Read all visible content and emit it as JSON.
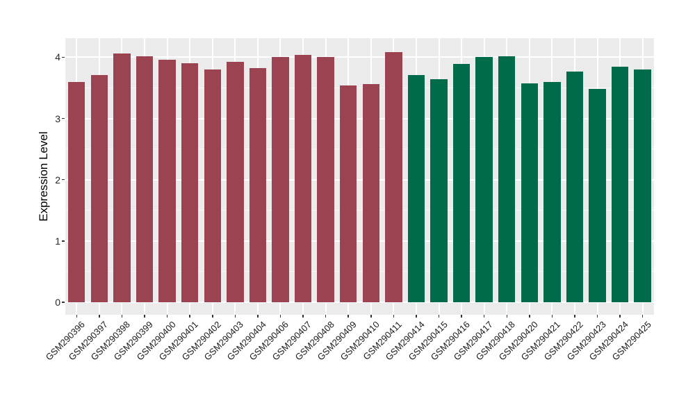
{
  "chart_data": {
    "type": "bar",
    "title": "",
    "xlabel": "",
    "ylabel": "Expression Level",
    "categories": [
      "GSM290396",
      "GSM290397",
      "GSM290398",
      "GSM290399",
      "GSM290400",
      "GSM290401",
      "GSM290402",
      "GSM290403",
      "GSM290404",
      "GSM290406",
      "GSM290407",
      "GSM290408",
      "GSM290409",
      "GSM290410",
      "GSM290411",
      "GSM290414",
      "GSM290415",
      "GSM290416",
      "GSM290417",
      "GSM290418",
      "GSM290420",
      "GSM290421",
      "GSM290422",
      "GSM290423",
      "GSM290424",
      "GSM290425"
    ],
    "values": [
      3.6,
      3.71,
      4.06,
      4.02,
      3.96,
      3.9,
      3.8,
      3.92,
      3.82,
      4.0,
      4.04,
      4.0,
      3.54,
      3.56,
      4.08,
      3.71,
      3.64,
      3.89,
      4.0,
      4.01,
      3.57,
      3.6,
      3.77,
      3.48,
      3.84,
      3.8
    ],
    "colors": [
      "#9C4352",
      "#9C4352",
      "#9C4352",
      "#9C4352",
      "#9C4352",
      "#9C4352",
      "#9C4352",
      "#9C4352",
      "#9C4352",
      "#9C4352",
      "#9C4352",
      "#9C4352",
      "#9C4352",
      "#9C4352",
      "#9C4352",
      "#006B4B",
      "#006B4B",
      "#006B4B",
      "#006B4B",
      "#006B4B",
      "#006B4B",
      "#006B4B",
      "#006B4B",
      "#006B4B",
      "#006B4B",
      "#006B4B"
    ],
    "group_colors": {
      "left_group": "#9C4352",
      "right_group": "#006B4B"
    },
    "yticks": [
      0,
      1,
      2,
      3,
      4
    ],
    "yticks_minor": [
      0.5,
      1.5,
      2.5,
      3.5
    ],
    "ylim": [
      -0.204,
      4.31
    ],
    "bar_width_fraction": 0.75,
    "legend": "none",
    "grid": "major-and-minor-horizontal, major-vertical-at-categories",
    "style": {
      "panel_background": "#EBEBEB",
      "grid_color": "#FFFFFF",
      "figure_background": "#FFFFFF",
      "tick_color": "#333333",
      "axis_text_color": "#1a1a1a"
    }
  }
}
